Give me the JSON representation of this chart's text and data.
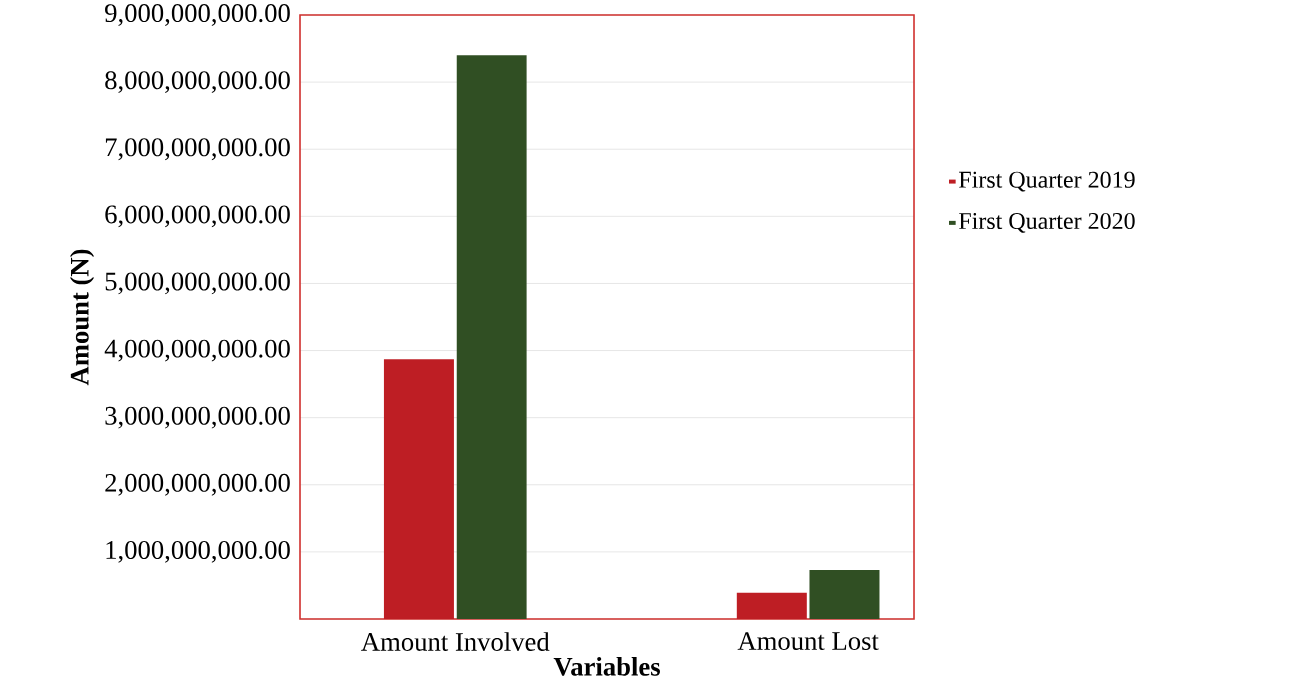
{
  "chart_data": {
    "type": "bar",
    "xlabel": "Variables",
    "ylabel": "Amount (N)",
    "categories": [
      "Amount Involved",
      "Amount Lost"
    ],
    "series": [
      {
        "name": "First Quarter 2019",
        "color": "#be1e24",
        "values": [
          3870000000,
          390000000
        ]
      },
      {
        "name": "First Quarter 2020",
        "color": "#304f23",
        "values": [
          8400000000,
          730000000
        ]
      }
    ],
    "ylim": [
      0,
      9000000000
    ],
    "yticks": [
      {
        "value": 0,
        "label": null
      },
      {
        "value": 1000000000,
        "label": "1,000,000,000.00"
      },
      {
        "value": 2000000000,
        "label": "2,000,000,000.00"
      },
      {
        "value": 3000000000,
        "label": "3,000,000,000.00"
      },
      {
        "value": 4000000000,
        "label": "4,000,000,000.00"
      },
      {
        "value": 5000000000,
        "label": "5,000,000,000.00"
      },
      {
        "value": 6000000000,
        "label": "6,000,000,000.00"
      },
      {
        "value": 7000000000,
        "label": "7,000,000,000.00"
      },
      {
        "value": 8000000000,
        "label": "8,000,000,000.00"
      },
      {
        "value": 9000000000,
        "label": "9,000,000,000.00"
      }
    ],
    "grid": "y",
    "legend": "right"
  }
}
